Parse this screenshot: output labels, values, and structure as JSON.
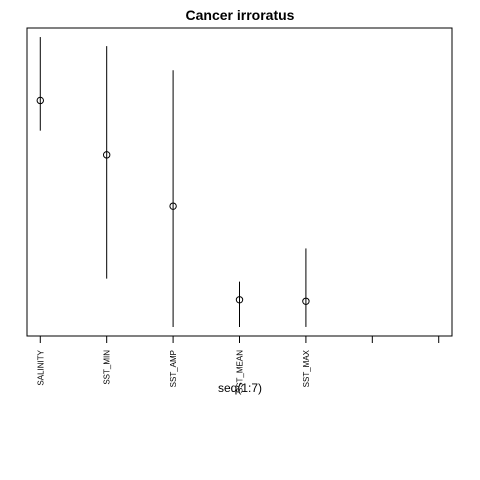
{
  "chart_data": {
    "type": "scatter",
    "title": "Cancer irroratus",
    "xlabel": "seq(1:7)",
    "ylabel": "",
    "x": [
      1,
      2,
      3,
      4,
      5,
      6,
      7
    ],
    "tick_labels": [
      "SALINITY",
      "SST_MIN",
      "SST_AMP",
      "SST_MEAN",
      "SST_MAX",
      "",
      ""
    ],
    "series": [
      {
        "points": [
          {
            "x": 1,
            "y": 0.78,
            "low": 0.68,
            "high": 0.99
          },
          {
            "x": 2,
            "y": 0.6,
            "low": 0.19,
            "high": 0.96
          },
          {
            "x": 3,
            "y": 0.43,
            "low": 0.03,
            "high": 0.88
          },
          {
            "x": 4,
            "y": 0.12,
            "low": 0.03,
            "high": 0.18
          },
          {
            "x": 5,
            "y": 0.115,
            "low": 0.03,
            "high": 0.29
          }
        ]
      }
    ],
    "xlim": [
      0.8,
      7.2
    ],
    "ylim": [
      0,
      1.02
    ],
    "grid": false,
    "legend": "none"
  }
}
